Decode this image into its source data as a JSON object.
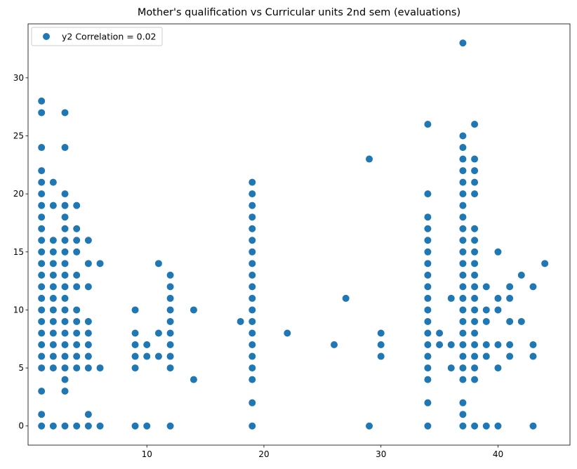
{
  "chart_data": {
    "type": "scatter",
    "title": "Mother's qualification vs Curricular units 2nd sem (evaluations)",
    "xlabel": "",
    "ylabel": "",
    "xlim": [
      -0.15,
      46.15
    ],
    "ylim": [
      -1.65,
      34.65
    ],
    "xticks": [
      10,
      20,
      30,
      40
    ],
    "yticks": [
      0,
      5,
      10,
      15,
      20,
      25,
      30
    ],
    "grid": false,
    "legend_position": "top-left",
    "series": [
      {
        "name": "y2 Correlation = 0.02",
        "color": "#1f77b4",
        "points": [
          [
            1,
            0
          ],
          [
            1,
            1
          ],
          [
            1,
            3
          ],
          [
            1,
            5
          ],
          [
            1,
            6
          ],
          [
            1,
            7
          ],
          [
            1,
            8
          ],
          [
            1,
            9
          ],
          [
            1,
            10
          ],
          [
            1,
            11
          ],
          [
            1,
            12
          ],
          [
            1,
            13
          ],
          [
            1,
            14
          ],
          [
            1,
            15
          ],
          [
            1,
            16
          ],
          [
            1,
            17
          ],
          [
            1,
            18
          ],
          [
            1,
            19
          ],
          [
            1,
            20
          ],
          [
            1,
            21
          ],
          [
            1,
            22
          ],
          [
            1,
            24
          ],
          [
            1,
            27
          ],
          [
            1,
            28
          ],
          [
            2,
            0
          ],
          [
            2,
            5
          ],
          [
            2,
            6
          ],
          [
            2,
            7
          ],
          [
            2,
            8
          ],
          [
            2,
            9
          ],
          [
            2,
            10
          ],
          [
            2,
            11
          ],
          [
            2,
            12
          ],
          [
            2,
            13
          ],
          [
            2,
            14
          ],
          [
            2,
            15
          ],
          [
            2,
            16
          ],
          [
            2,
            19
          ],
          [
            2,
            21
          ],
          [
            3,
            0
          ],
          [
            3,
            3
          ],
          [
            3,
            4
          ],
          [
            3,
            5
          ],
          [
            3,
            6
          ],
          [
            3,
            7
          ],
          [
            3,
            8
          ],
          [
            3,
            9
          ],
          [
            3,
            10
          ],
          [
            3,
            11
          ],
          [
            3,
            12
          ],
          [
            3,
            13
          ],
          [
            3,
            14
          ],
          [
            3,
            15
          ],
          [
            3,
            16
          ],
          [
            3,
            17
          ],
          [
            3,
            18
          ],
          [
            3,
            19
          ],
          [
            3,
            20
          ],
          [
            3,
            24
          ],
          [
            3,
            27
          ],
          [
            4,
            0
          ],
          [
            4,
            5
          ],
          [
            4,
            6
          ],
          [
            4,
            7
          ],
          [
            4,
            8
          ],
          [
            4,
            9
          ],
          [
            4,
            10
          ],
          [
            4,
            12
          ],
          [
            4,
            13
          ],
          [
            4,
            15
          ],
          [
            4,
            16
          ],
          [
            4,
            17
          ],
          [
            4,
            19
          ],
          [
            5,
            0
          ],
          [
            5,
            1
          ],
          [
            5,
            5
          ],
          [
            5,
            6
          ],
          [
            5,
            7
          ],
          [
            5,
            8
          ],
          [
            5,
            9
          ],
          [
            5,
            12
          ],
          [
            5,
            14
          ],
          [
            5,
            16
          ],
          [
            6,
            0
          ],
          [
            6,
            5
          ],
          [
            6,
            14
          ],
          [
            9,
            0
          ],
          [
            9,
            5
          ],
          [
            9,
            6
          ],
          [
            9,
            7
          ],
          [
            9,
            8
          ],
          [
            9,
            10
          ],
          [
            10,
            0
          ],
          [
            10,
            6
          ],
          [
            10,
            7
          ],
          [
            11,
            6
          ],
          [
            11,
            8
          ],
          [
            11,
            14
          ],
          [
            12,
            0
          ],
          [
            12,
            5
          ],
          [
            12,
            6
          ],
          [
            12,
            7
          ],
          [
            12,
            8
          ],
          [
            12,
            9
          ],
          [
            12,
            10
          ],
          [
            12,
            11
          ],
          [
            12,
            12
          ],
          [
            12,
            13
          ],
          [
            14,
            4
          ],
          [
            14,
            10
          ],
          [
            18,
            9
          ],
          [
            19,
            0
          ],
          [
            19,
            2
          ],
          [
            19,
            4
          ],
          [
            19,
            5
          ],
          [
            19,
            6
          ],
          [
            19,
            7
          ],
          [
            19,
            8
          ],
          [
            19,
            9
          ],
          [
            19,
            10
          ],
          [
            19,
            11
          ],
          [
            19,
            12
          ],
          [
            19,
            13
          ],
          [
            19,
            14
          ],
          [
            19,
            15
          ],
          [
            19,
            16
          ],
          [
            19,
            17
          ],
          [
            19,
            18
          ],
          [
            19,
            19
          ],
          [
            19,
            20
          ],
          [
            19,
            21
          ],
          [
            22,
            8
          ],
          [
            26,
            7
          ],
          [
            27,
            11
          ],
          [
            29,
            0
          ],
          [
            29,
            23
          ],
          [
            30,
            6
          ],
          [
            30,
            7
          ],
          [
            30,
            8
          ],
          [
            34,
            0
          ],
          [
            34,
            2
          ],
          [
            34,
            4
          ],
          [
            34,
            5
          ],
          [
            34,
            6
          ],
          [
            34,
            7
          ],
          [
            34,
            8
          ],
          [
            34,
            9
          ],
          [
            34,
            10
          ],
          [
            34,
            11
          ],
          [
            34,
            12
          ],
          [
            34,
            13
          ],
          [
            34,
            14
          ],
          [
            34,
            15
          ],
          [
            34,
            16
          ],
          [
            34,
            17
          ],
          [
            34,
            18
          ],
          [
            34,
            20
          ],
          [
            34,
            26
          ],
          [
            35,
            7
          ],
          [
            35,
            8
          ],
          [
            36,
            5
          ],
          [
            36,
            7
          ],
          [
            36,
            11
          ],
          [
            37,
            0
          ],
          [
            37,
            1
          ],
          [
            37,
            2
          ],
          [
            37,
            4
          ],
          [
            37,
            5
          ],
          [
            37,
            6
          ],
          [
            37,
            7
          ],
          [
            37,
            8
          ],
          [
            37,
            9
          ],
          [
            37,
            10
          ],
          [
            37,
            11
          ],
          [
            37,
            12
          ],
          [
            37,
            13
          ],
          [
            37,
            14
          ],
          [
            37,
            15
          ],
          [
            37,
            16
          ],
          [
            37,
            17
          ],
          [
            37,
            18
          ],
          [
            37,
            19
          ],
          [
            37,
            20
          ],
          [
            37,
            21
          ],
          [
            37,
            22
          ],
          [
            37,
            23
          ],
          [
            37,
            24
          ],
          [
            37,
            25
          ],
          [
            37,
            33
          ],
          [
            38,
            0
          ],
          [
            38,
            4
          ],
          [
            38,
            5
          ],
          [
            38,
            6
          ],
          [
            38,
            7
          ],
          [
            38,
            8
          ],
          [
            38,
            9
          ],
          [
            38,
            10
          ],
          [
            38,
            11
          ],
          [
            38,
            12
          ],
          [
            38,
            13
          ],
          [
            38,
            14
          ],
          [
            38,
            15
          ],
          [
            38,
            16
          ],
          [
            38,
            17
          ],
          [
            38,
            20
          ],
          [
            38,
            21
          ],
          [
            38,
            22
          ],
          [
            38,
            23
          ],
          [
            38,
            26
          ],
          [
            39,
            0
          ],
          [
            39,
            6
          ],
          [
            39,
            7
          ],
          [
            39,
            9
          ],
          [
            39,
            10
          ],
          [
            39,
            12
          ],
          [
            40,
            0
          ],
          [
            40,
            5
          ],
          [
            40,
            7
          ],
          [
            40,
            10
          ],
          [
            40,
            11
          ],
          [
            40,
            15
          ],
          [
            41,
            6
          ],
          [
            41,
            7
          ],
          [
            41,
            9
          ],
          [
            41,
            11
          ],
          [
            41,
            12
          ],
          [
            42,
            9
          ],
          [
            42,
            13
          ],
          [
            43,
            0
          ],
          [
            43,
            6
          ],
          [
            43,
            7
          ],
          [
            43,
            12
          ],
          [
            44,
            14
          ]
        ]
      }
    ]
  }
}
